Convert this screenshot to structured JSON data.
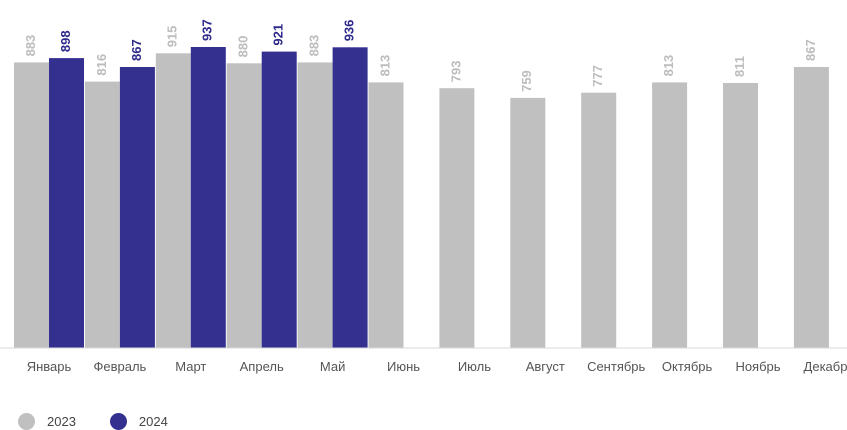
{
  "chart_data": {
    "type": "bar",
    "title": "",
    "xlabel": "",
    "ylabel": "",
    "grid": false,
    "legend_position": "bottom-left",
    "categories": [
      "Январь",
      "Февраль",
      "Март",
      "Апрель",
      "Май",
      "Июнь",
      "Июль",
      "Август",
      "Сентябрь",
      "Октябрь",
      "Ноябрь",
      "Декабрь"
    ],
    "series": [
      {
        "name": "2023",
        "color": "#c0c0c0",
        "label_color": "#bdbdbd",
        "values": [
          883,
          816,
          915,
          880,
          883,
          813,
          793,
          759,
          777,
          813,
          811,
          867
        ]
      },
      {
        "name": "2024",
        "color": "#343090",
        "label_color": "#2d2a8a",
        "values": [
          898,
          867,
          937,
          921,
          936,
          null,
          null,
          null,
          null,
          null,
          null,
          null
        ]
      }
    ]
  }
}
